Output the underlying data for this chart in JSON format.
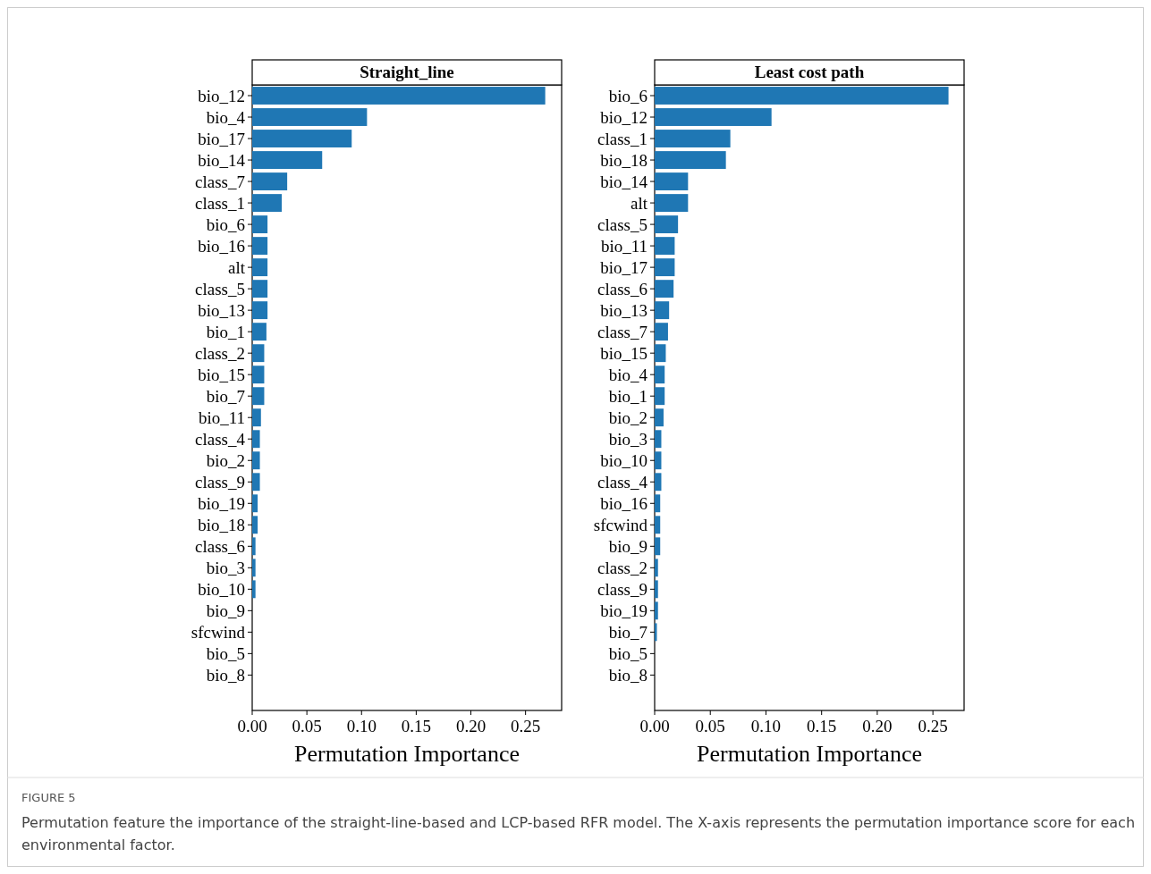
{
  "chart_data": [
    {
      "type": "bar",
      "orientation": "horizontal",
      "title": "Straight_line",
      "xlabel": "Permutation Importance",
      "categories": [
        "bio_12",
        "bio_4",
        "bio_17",
        "bio_14",
        "class_7",
        "class_1",
        "bio_6",
        "bio_16",
        "alt",
        "class_5",
        "bio_13",
        "bio_1",
        "class_2",
        "bio_15",
        "bio_7",
        "bio_11",
        "class_4",
        "bio_2",
        "class_9",
        "bio_19",
        "bio_18",
        "class_6",
        "bio_3",
        "bio_10",
        "bio_9",
        "sfcwind",
        "bio_5",
        "bio_8"
      ],
      "values": [
        0.268,
        0.105,
        0.091,
        0.064,
        0.032,
        0.027,
        0.014,
        0.014,
        0.014,
        0.014,
        0.014,
        0.013,
        0.011,
        0.011,
        0.011,
        0.008,
        0.007,
        0.007,
        0.007,
        0.005,
        0.005,
        0.003,
        0.003,
        0.003,
        0,
        0,
        0,
        0
      ],
      "color": "#1f77b4",
      "xlim": [
        0,
        0.283
      ],
      "xticks": [
        {
          "value": 0,
          "label": "0.00"
        },
        {
          "value": 0.05,
          "label": "0.05"
        },
        {
          "value": 0.1,
          "label": "0.10"
        },
        {
          "value": 0.15,
          "label": "0.15"
        },
        {
          "value": 0.2,
          "label": "0.20"
        },
        {
          "value": 0.25,
          "label": "0.25"
        }
      ],
      "annotations": [
        "FIGURE 5",
        "Permutation feature the importance of the straight-line-based and LCP-based RFR model. The X-axis represents the permutation importance score for each environmental factor."
      ]
    },
    {
      "type": "bar",
      "orientation": "horizontal",
      "title": "Least cost path",
      "xlabel": "Permutation Importance",
      "categories": [
        "bio_6",
        "bio_12",
        "class_1",
        "bio_18",
        "bio_14",
        "alt",
        "class_5",
        "bio_11",
        "bio_17",
        "class_6",
        "bio_13",
        "class_7",
        "bio_15",
        "bio_4",
        "bio_1",
        "bio_2",
        "bio_3",
        "bio_10",
        "class_4",
        "bio_16",
        "sfcwind",
        "bio_9",
        "class_2",
        "class_9",
        "bio_19",
        "bio_7",
        "bio_5",
        "bio_8"
      ],
      "values": [
        0.264,
        0.105,
        0.068,
        0.064,
        0.03,
        0.03,
        0.021,
        0.018,
        0.018,
        0.017,
        0.013,
        0.012,
        0.01,
        0.009,
        0.009,
        0.008,
        0.006,
        0.006,
        0.006,
        0.005,
        0.005,
        0.005,
        0.003,
        0.003,
        0.003,
        0.002,
        0,
        0
      ],
      "color": "#1f77b4",
      "xlim": [
        0,
        0.278
      ],
      "xticks": [
        {
          "value": 0,
          "label": "0.00"
        },
        {
          "value": 0.05,
          "label": "0.05"
        },
        {
          "value": 0.1,
          "label": "0.10"
        },
        {
          "value": 0.15,
          "label": "0.15"
        },
        {
          "value": 0.2,
          "label": "0.20"
        },
        {
          "value": 0.25,
          "label": "0.25"
        }
      ]
    }
  ]
}
